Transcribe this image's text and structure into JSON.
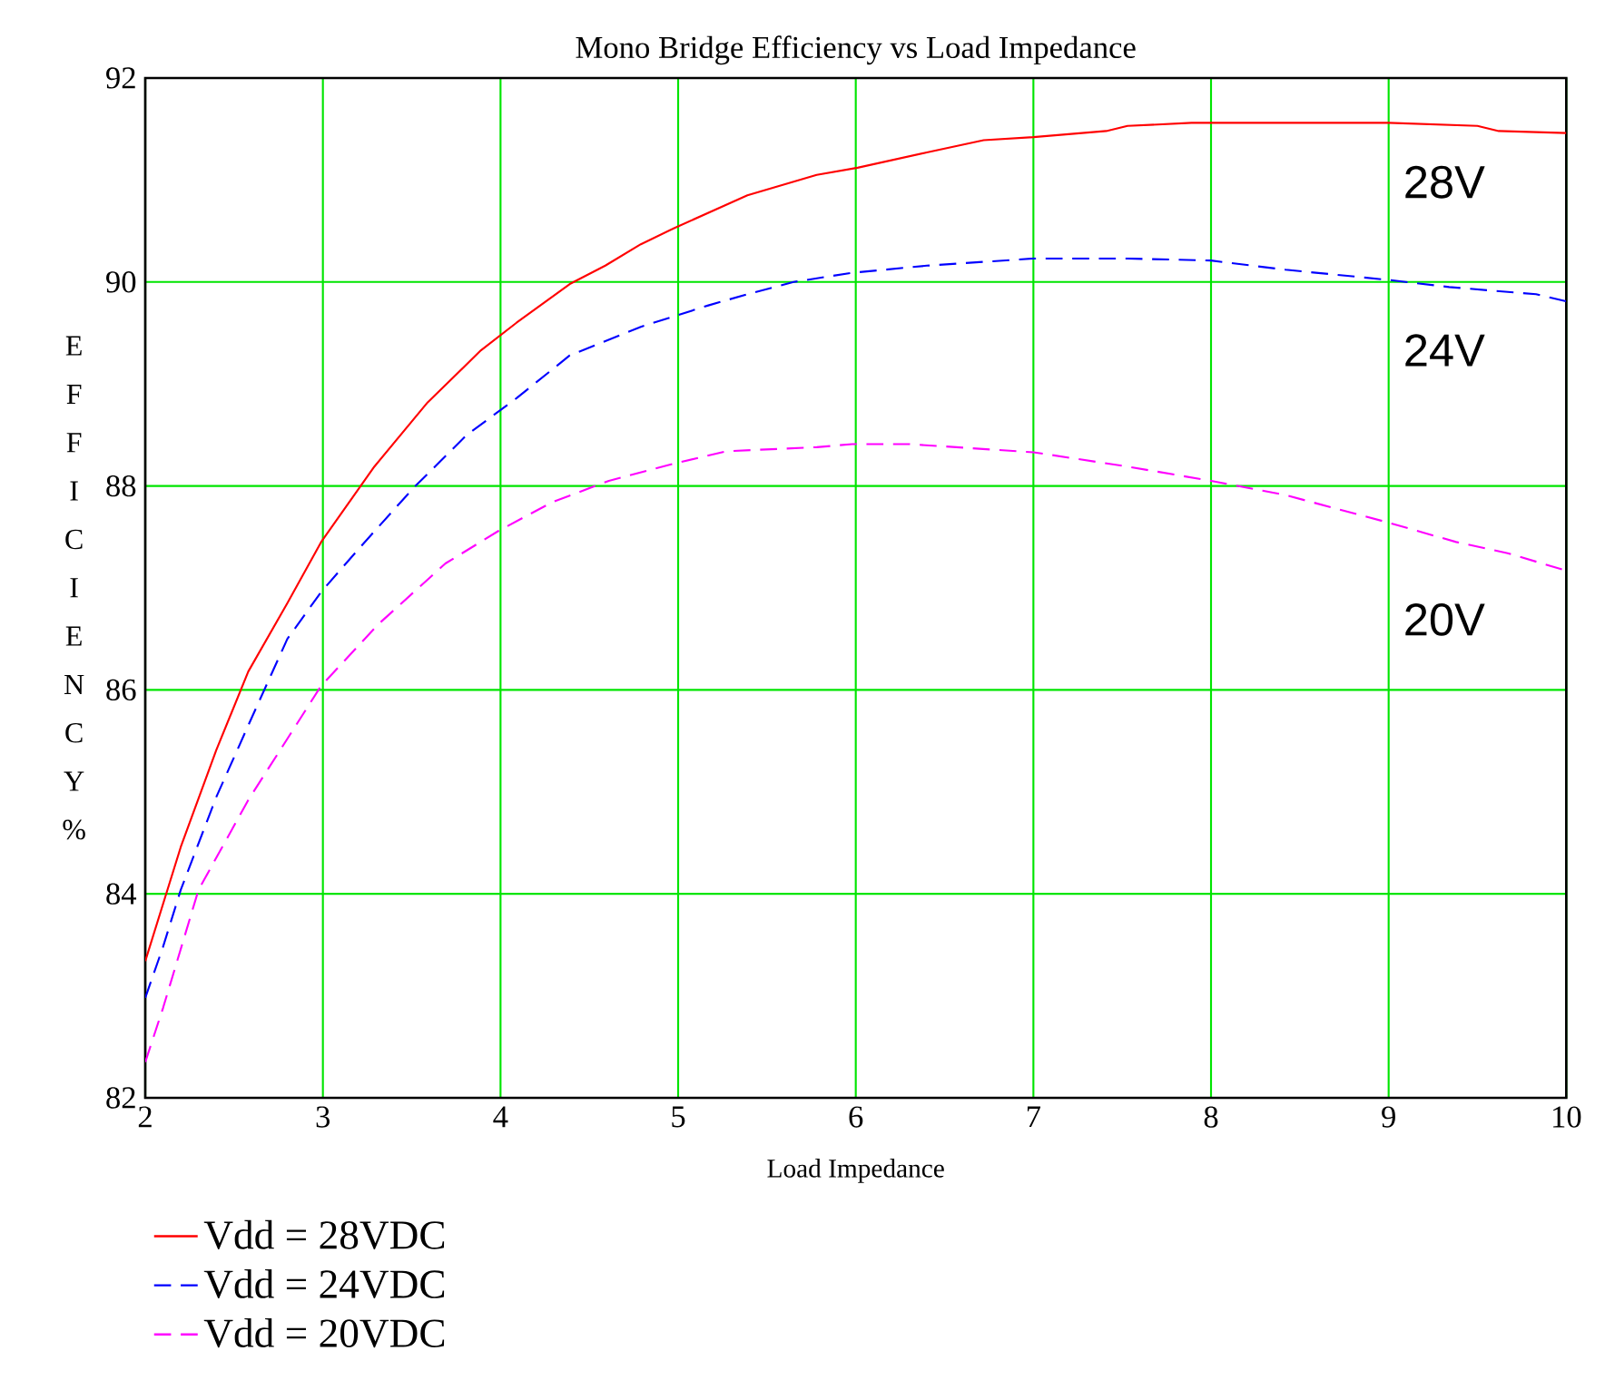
{
  "chart_data": {
    "type": "line",
    "title": "Mono Bridge Efficiency vs Load Impedance",
    "xlabel": "Load Impedance",
    "ylabel": "E F F I C I E N C Y %",
    "xlim": [
      2,
      10
    ],
    "ylim": [
      82,
      92
    ],
    "xticks": [
      2,
      3,
      4,
      5,
      6,
      7,
      8,
      9,
      10
    ],
    "yticks": [
      82,
      84,
      86,
      88,
      90,
      92
    ],
    "grid": true,
    "legend": "bottom left",
    "series": [
      {
        "name": "Vdd = 28VDC",
        "color": "#ff0000",
        "line_style": "solid",
        "x": [
          2,
          2.2,
          2.4,
          2.58,
          2.8,
          2.99,
          3.29,
          3.59,
          3.89,
          4.09,
          4.39,
          4.59,
          4.79,
          4.98,
          5.39,
          5.78,
          6.01,
          6.4,
          6.72,
          7,
          7.41,
          7.53,
          7.89,
          9,
          9.5,
          9.62,
          10
        ],
        "values": [
          83.34,
          84.46,
          85.41,
          86.18,
          86.85,
          87.45,
          88.19,
          88.82,
          89.33,
          89.6,
          89.98,
          90.16,
          90.37,
          90.53,
          90.85,
          91.05,
          91.12,
          91.27,
          91.39,
          91.42,
          91.48,
          91.53,
          91.56,
          91.56,
          91.53,
          91.48,
          91.46
        ]
      },
      {
        "name": "Vdd = 24VDC",
        "color": "#0000ff",
        "line_style": "dashed",
        "x": [
          2,
          2.1,
          2.2,
          2.4,
          2.6,
          2.8,
          2.99,
          3.2,
          3.51,
          3.81,
          4.09,
          4.39,
          4.79,
          5.17,
          5.39,
          5.65,
          5.98,
          6.4,
          7,
          7.53,
          8,
          8.42,
          9,
          9.34,
          9.83,
          10
        ],
        "values": [
          82.98,
          83.48,
          84.04,
          84.95,
          85.73,
          86.5,
          86.96,
          87.38,
          87.98,
          88.5,
          88.86,
          89.28,
          89.56,
          89.77,
          89.88,
          90.0,
          90.09,
          90.16,
          90.23,
          90.23,
          90.21,
          90.12,
          90.02,
          89.95,
          89.88,
          89.81
        ]
      },
      {
        "name": "Vdd = 20VDC",
        "color": "#ff00ff",
        "line_style": "dashed",
        "x": [
          2,
          2.1,
          2.3,
          2.58,
          2.99,
          3.31,
          3.69,
          3.99,
          4.29,
          4.61,
          4.98,
          5.27,
          5.78,
          5.98,
          6.3,
          7,
          7.53,
          8,
          8.42,
          9,
          9.38,
          9.67,
          10
        ],
        "values": [
          82.35,
          82.88,
          84.04,
          84.92,
          86.04,
          86.64,
          87.24,
          87.56,
          87.84,
          88.05,
          88.22,
          88.34,
          88.38,
          88.41,
          88.41,
          88.33,
          88.19,
          88.05,
          87.91,
          87.64,
          87.45,
          87.34,
          87.17
        ]
      }
    ],
    "annotations": [
      "28V",
      "24V",
      "20V"
    ]
  }
}
